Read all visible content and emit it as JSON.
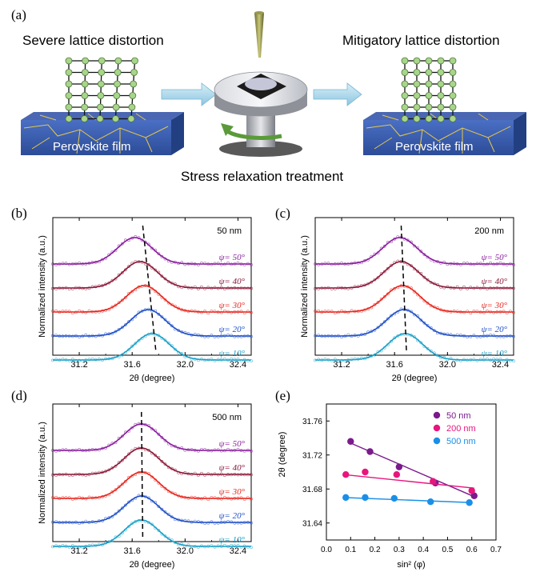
{
  "panel_labels": {
    "a": "(a)",
    "b": "(b)",
    "c": "(c)",
    "d": "(d)",
    "e": "(e)"
  },
  "schematic": {
    "left_title": "Severe lattice distortion",
    "right_title": "Mitigatory lattice distortion",
    "film_label_left": "Perovskite film",
    "film_label_right": "Perovskite film",
    "center_caption": "Stress relaxation treatment",
    "colors": {
      "film": "#3a5fb0",
      "grain": "#e6c84a",
      "node": "#9fcf7a",
      "arrow": "#9fd2e8",
      "spin": "#5a9a3a"
    }
  },
  "chart_data": [
    {
      "type": "line",
      "panel": "(b)",
      "thickness_label": "50 nm",
      "xlabel": "2θ (degree)",
      "ylabel": "Normalized intensity (a.u.)",
      "xlim": [
        31.0,
        32.5
      ],
      "xticks": [
        "31.2",
        "31.6",
        "32.0",
        "32.4"
      ],
      "series": [
        {
          "name": "ψ= 50°",
          "peak": 31.62,
          "color": "#8a1f9e"
        },
        {
          "name": "ψ= 40°",
          "peak": 31.66,
          "color": "#8b1a3a"
        },
        {
          "name": "ψ= 30°",
          "peak": 31.69,
          "color": "#e8261e"
        },
        {
          "name": "ψ= 20°",
          "peak": 31.72,
          "color": "#1f4fc8"
        },
        {
          "name": "ψ= 10°",
          "peak": 31.75,
          "color": "#1aa0c8"
        }
      ],
      "guide_line": {
        "from": [
          31.68,
          1
        ],
        "to": [
          31.78,
          0
        ]
      }
    },
    {
      "type": "line",
      "panel": "(c)",
      "thickness_label": "200 nm",
      "xlabel": "2θ (degree)",
      "ylabel": "Normalized intensity (a.u.)",
      "xlim": [
        31.0,
        32.5
      ],
      "xticks": [
        "31.2",
        "31.6",
        "32.0",
        "32.4"
      ],
      "series": [
        {
          "name": "ψ= 50°",
          "peak": 31.64,
          "color": "#8a1f9e"
        },
        {
          "name": "ψ= 40°",
          "peak": 31.65,
          "color": "#8b1a3a"
        },
        {
          "name": "ψ= 30°",
          "peak": 31.66,
          "color": "#e8261e"
        },
        {
          "name": "ψ= 20°",
          "peak": 31.67,
          "color": "#1f4fc8"
        },
        {
          "name": "ψ= 10°",
          "peak": 31.68,
          "color": "#1aa0c8"
        }
      ],
      "guide_line": {
        "from": [
          31.65,
          1
        ],
        "to": [
          31.69,
          0
        ]
      }
    },
    {
      "type": "line",
      "panel": "(d)",
      "thickness_label": "500 nm",
      "xlabel": "2θ (degree)",
      "ylabel": "Normalized intensity (a.u.)",
      "xlim": [
        31.0,
        32.5
      ],
      "xticks": [
        "31.2",
        "31.6",
        "32.0",
        "32.4"
      ],
      "series": [
        {
          "name": "ψ= 50°",
          "peak": 31.67,
          "color": "#8a1f9e"
        },
        {
          "name": "ψ= 40°",
          "peak": 31.67,
          "color": "#8b1a3a"
        },
        {
          "name": "ψ= 30°",
          "peak": 31.67,
          "color": "#e8261e"
        },
        {
          "name": "ψ= 20°",
          "peak": 31.67,
          "color": "#1f4fc8"
        },
        {
          "name": "ψ= 10°",
          "peak": 31.67,
          "color": "#1aa0c8"
        }
      ],
      "guide_line": {
        "from": [
          31.67,
          1
        ],
        "to": [
          31.68,
          0
        ]
      }
    },
    {
      "type": "scatter",
      "panel": "(e)",
      "xlabel": "sin² (φ)",
      "ylabel": "2θ (degree)",
      "xlim": [
        0.0,
        0.7
      ],
      "ylim": [
        31.62,
        31.78
      ],
      "xticks": [
        "0.0",
        "0.1",
        "0.2",
        "0.3",
        "0.4",
        "0.5",
        "0.6",
        "0.7"
      ],
      "yticks": [
        "31.64",
        "31.68",
        "31.72",
        "31.76"
      ],
      "legend_position": "top-right",
      "series": [
        {
          "name": "50 nm",
          "color": "#7a1a8c",
          "x": [
            0.1,
            0.18,
            0.3,
            0.45,
            0.61
          ],
          "y": [
            31.736,
            31.724,
            31.706,
            31.687,
            31.672
          ],
          "fit": [
            [
              0.1,
              31.734
            ],
            [
              0.61,
              31.671
            ]
          ]
        },
        {
          "name": "200 nm",
          "color": "#e8157d",
          "x": [
            0.08,
            0.16,
            0.29,
            0.44,
            0.6
          ],
          "y": [
            31.697,
            31.7,
            31.697,
            31.689,
            31.678
          ],
          "fit": [
            [
              0.07,
              31.697
            ],
            [
              0.61,
              31.681
            ]
          ]
        },
        {
          "name": "500 nm",
          "color": "#1a8fe8",
          "x": [
            0.08,
            0.16,
            0.28,
            0.43,
            0.59
          ],
          "y": [
            31.67,
            31.67,
            31.669,
            31.665,
            31.664
          ],
          "fit": [
            [
              0.07,
              31.67
            ],
            [
              0.6,
              31.664
            ]
          ]
        }
      ]
    }
  ]
}
